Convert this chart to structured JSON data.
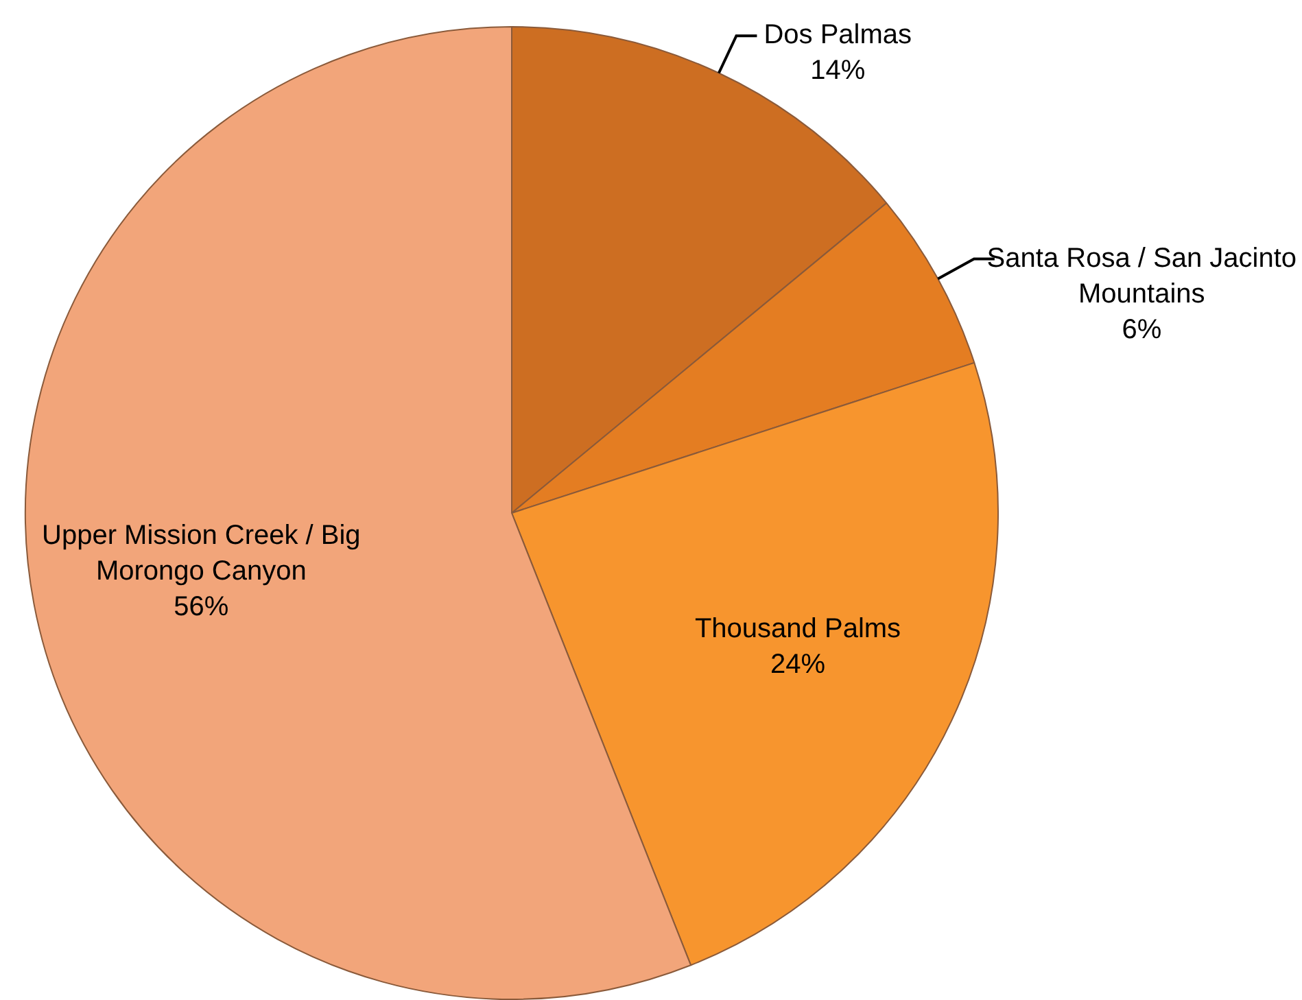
{
  "chart_data": {
    "type": "pie",
    "categories": [
      "Dos Palmas",
      "Santa Rosa / San Jacinto Mountains",
      "Thousand Palms",
      "Upper Mission Creek / Big Morongo Canyon"
    ],
    "values": [
      14,
      6,
      24,
      56
    ],
    "colors": [
      "#cd6e22",
      "#e47d22",
      "#f7952e",
      "#f2a57a"
    ],
    "value_labels": [
      "14%",
      "6%",
      "24%",
      "56%"
    ]
  }
}
